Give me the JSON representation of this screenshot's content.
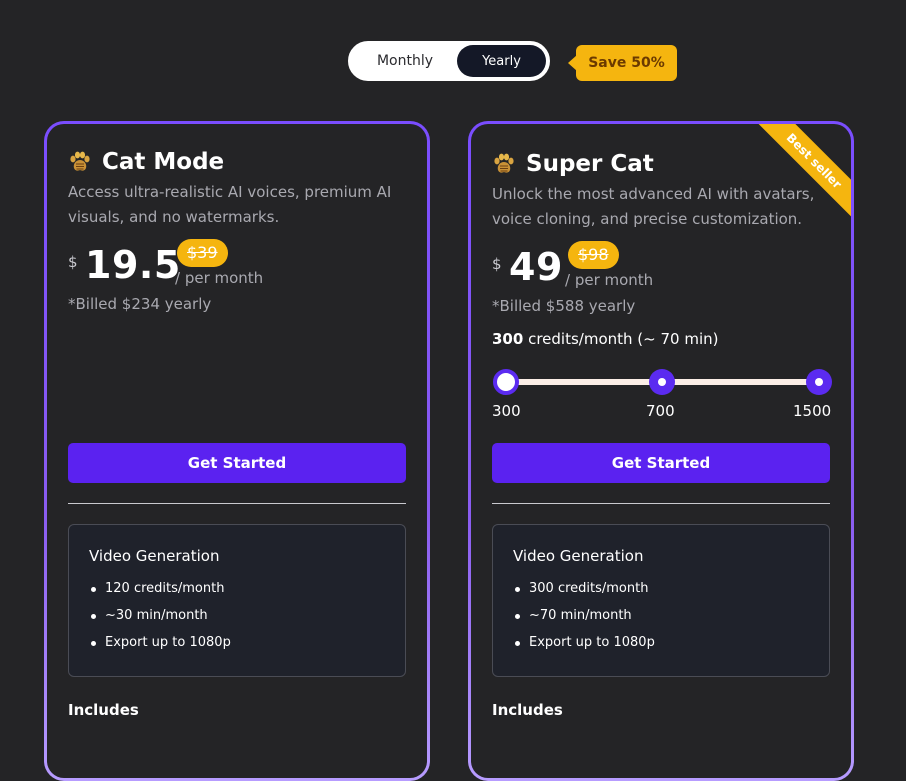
{
  "billing_toggle": {
    "monthly_label": "Monthly",
    "yearly_label": "Yearly",
    "selected": "Yearly",
    "save_badge": "Save 50%"
  },
  "colors": {
    "accent": "#5b22f0",
    "badge": "#f5b50f",
    "background": "#242426",
    "card_border": "#7a4dff"
  },
  "plans": [
    {
      "icon": "paw-icon",
      "name": "Cat Mode",
      "description": "Access ultra-realistic AI voices, premium AI visuals, and no watermarks.",
      "currency": "$",
      "price": "19.5",
      "old_price": "$39",
      "per_month": "/ per month",
      "billed": "*Billed $234 yearly",
      "cta": "Get Started",
      "feature_title": "Video Generation",
      "features": [
        "120 credits/month",
        "~30 min/month",
        "Export up to 1080p"
      ],
      "includes_label": "Includes"
    },
    {
      "icon": "paw-icon",
      "name": "Super Cat",
      "ribbon": "Best seller",
      "description": "Unlock the most advanced AI with avatars, voice cloning, and precise customization.",
      "currency": "$",
      "price": "49",
      "old_price": "$98",
      "per_month": "/ per month",
      "billed": "*Billed $588 yearly",
      "credits_amount": "300",
      "credits_suffix": " credits/month (~ 70 min)",
      "slider": {
        "options": [
          "300",
          "700",
          "1500"
        ],
        "selected": "300"
      },
      "cta": "Get Started",
      "feature_title": "Video Generation",
      "features": [
        "300 credits/month",
        "~70 min/month",
        "Export up to 1080p"
      ],
      "includes_label": "Includes"
    }
  ]
}
